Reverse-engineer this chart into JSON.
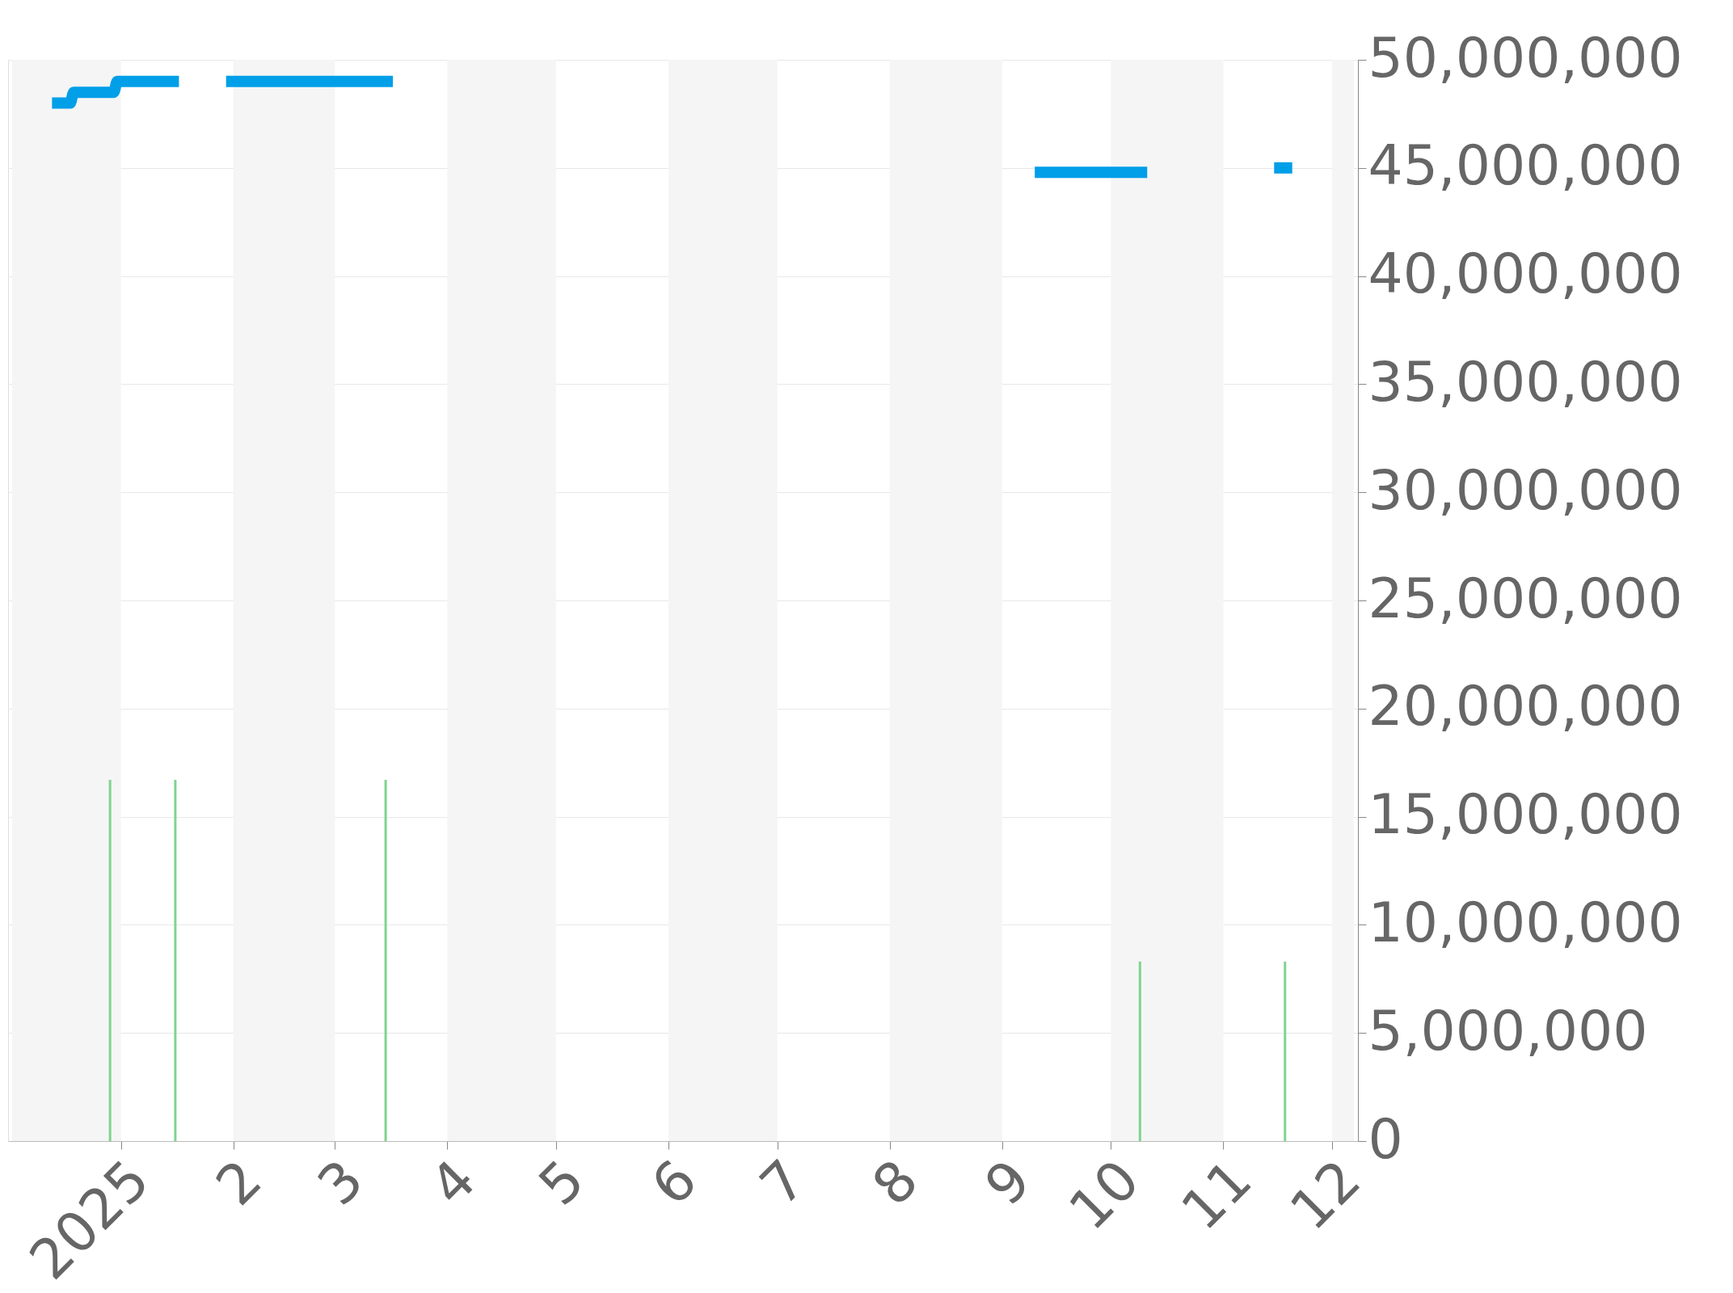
{
  "chart_data": {
    "type": "line",
    "xlim": [
      "2024-12-02",
      "2025-12-07"
    ],
    "xticks": [
      {
        "value": "2025-01-01",
        "label": "2025"
      },
      {
        "value": "2025-02-01",
        "label": "2"
      },
      {
        "value": "2025-03-01",
        "label": "3"
      },
      {
        "value": "2025-04-01",
        "label": "4"
      },
      {
        "value": "2025-05-01",
        "label": "5"
      },
      {
        "value": "2025-06-01",
        "label": "6"
      },
      {
        "value": "2025-07-01",
        "label": "7"
      },
      {
        "value": "2025-08-01",
        "label": "8"
      },
      {
        "value": "2025-09-01",
        "label": "9"
      },
      {
        "value": "2025-10-01",
        "label": "10"
      },
      {
        "value": "2025-11-01",
        "label": "11"
      },
      {
        "value": "2025-12-01",
        "label": "12"
      }
    ],
    "ylim": [
      0,
      50000000
    ],
    "yticks": [
      0,
      {
        "value": 5000000,
        "label": "5,000,000"
      },
      {
        "value": 10000000,
        "label": "10,000,000"
      },
      {
        "value": 15000000,
        "label": "15,000,000"
      },
      {
        "value": 20000000,
        "label": "20,000,000"
      },
      {
        "value": 25000000,
        "label": "25,000,000"
      },
      {
        "value": 30000000,
        "label": "30,000,000"
      },
      {
        "value": 35000000,
        "label": "35,000,000"
      },
      {
        "value": 40000000,
        "label": "40,000,000"
      },
      {
        "value": 45000000,
        "label": "45,000,000"
      },
      {
        "value": 50000000,
        "label": "50,000,000"
      }
    ],
    "grid": "y",
    "marker": "none",
    "line_style": "solid",
    "bands": [
      {
        "axis": "x",
        "from": "2024-12-02",
        "to": "2025-01-01",
        "color": "#f5f5f5"
      },
      {
        "axis": "x",
        "from": "2025-02-01",
        "to": "2025-03-01",
        "color": "#f5f5f5"
      },
      {
        "axis": "x",
        "from": "2025-04-01",
        "to": "2025-05-01",
        "color": "#f5f5f5"
      },
      {
        "axis": "x",
        "from": "2025-06-01",
        "to": "2025-07-01",
        "color": "#f5f5f5"
      },
      {
        "axis": "x",
        "from": "2025-08-01",
        "to": "2025-09-01",
        "color": "#f5f5f5"
      },
      {
        "axis": "x",
        "from": "2025-10-01",
        "to": "2025-11-01",
        "color": "#f5f5f5"
      },
      {
        "axis": "x",
        "from": "2025-12-01",
        "to": "2025-12-07",
        "color": "#f5f5f5"
      }
    ],
    "series": [
      {
        "color": "#009fe8",
        "x": [
          "2024-12-13",
          "2024-12-18",
          "2024-12-19",
          "2024-12-30",
          "2024-12-31",
          "2025-01-17",
          "2025-01-24",
          "2025-01-30",
          "2025-03-17",
          "2025-06-01",
          "2025-09-10",
          "2025-10-11",
          "2025-10-25",
          "2025-11-15",
          "2025-11-20"
        ],
        "values": [
          48000000,
          48000000,
          48500000,
          48500000,
          49000000,
          49000000,
          null,
          49000000,
          49000000,
          null,
          44800000,
          44800000,
          null,
          45000000,
          45000000
        ]
      },
      {
        "type": "bar",
        "color": "#7fd48f",
        "x": [
          "2024-12-29",
          "2025-01-16",
          "2025-03-15",
          "2025-10-09",
          "2025-11-18"
        ],
        "values": [
          16700000,
          16700000,
          16700000,
          8300000,
          8300000
        ]
      }
    ]
  }
}
